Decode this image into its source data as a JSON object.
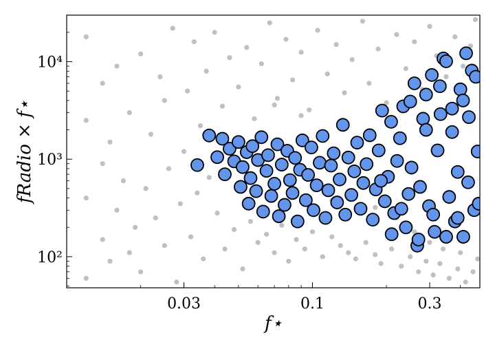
{
  "chart_data": {
    "type": "scatter",
    "title": "",
    "xlabel": "f⋆",
    "ylabel": "fRadio × f⋆",
    "x_scale": "log",
    "y_scale": "log",
    "xlim": [
      0.01,
      0.48
    ],
    "ylim": [
      48,
      30000
    ],
    "x_ticks": [
      {
        "value": 0.03,
        "label": "0.03"
      },
      {
        "value": 0.1,
        "label": "0.1"
      },
      {
        "value": 0.3,
        "label": "0.3"
      }
    ],
    "y_ticks": [
      {
        "value": 100,
        "label": "10²"
      },
      {
        "value": 1000,
        "label": "10³"
      },
      {
        "value": 10000,
        "label": "10⁴"
      }
    ],
    "grid": false,
    "legend": "none",
    "colors": {
      "background_points": "#8c8c8c",
      "highlighted_points": "#6495ed",
      "highlighted_edge": "#000000"
    },
    "series": [
      {
        "role": "background",
        "points": [
          [
            0.012,
            60
          ],
          [
            0.012,
            400
          ],
          [
            0.012,
            2500
          ],
          [
            0.012,
            18000
          ],
          [
            0.014,
            150
          ],
          [
            0.014,
            900
          ],
          [
            0.014,
            6000
          ],
          [
            0.015,
            90
          ],
          [
            0.015,
            1500
          ],
          [
            0.016,
            300
          ],
          [
            0.016,
            9000
          ],
          [
            0.017,
            600
          ],
          [
            0.018,
            110
          ],
          [
            0.018,
            3000
          ],
          [
            0.019,
            200
          ],
          [
            0.02,
            12000
          ],
          [
            0.02,
            70
          ],
          [
            0.021,
            500
          ],
          [
            0.022,
            1800
          ],
          [
            0.023,
            250
          ],
          [
            0.024,
            7000
          ],
          [
            0.025,
            130
          ],
          [
            0.025,
            4000
          ],
          [
            0.026,
            800
          ],
          [
            0.027,
            22000
          ],
          [
            0.028,
            55
          ],
          [
            0.029,
            350
          ],
          [
            0.03,
            1200
          ],
          [
            0.031,
            5000
          ],
          [
            0.032,
            160
          ],
          [
            0.033,
            16000
          ],
          [
            0.034,
            450
          ],
          [
            0.035,
            2200
          ],
          [
            0.036,
            95
          ],
          [
            0.037,
            8000
          ],
          [
            0.038,
            650
          ],
          [
            0.04,
            20000
          ],
          [
            0.041,
            280
          ],
          [
            0.043,
            3500
          ],
          [
            0.044,
            120
          ],
          [
            0.046,
            11000
          ],
          [
            0.048,
            190
          ],
          [
            0.05,
            5500
          ],
          [
            0.052,
            75
          ],
          [
            0.054,
            14000
          ],
          [
            0.056,
            230
          ],
          [
            0.058,
            2600
          ],
          [
            0.06,
            140
          ],
          [
            0.062,
            9500
          ],
          [
            0.065,
            170
          ],
          [
            0.067,
            25000
          ],
          [
            0.07,
            110
          ],
          [
            0.072,
            4200
          ],
          [
            0.075,
            210
          ],
          [
            0.078,
            17000
          ],
          [
            0.08,
            90
          ],
          [
            0.083,
            6500
          ],
          [
            0.086,
            150
          ],
          [
            0.09,
            12500
          ],
          [
            0.093,
            120
          ],
          [
            0.097,
            3200
          ],
          [
            0.1,
            180
          ],
          [
            0.105,
            21000
          ],
          [
            0.11,
            100
          ],
          [
            0.115,
            7500
          ],
          [
            0.12,
            160
          ],
          [
            0.125,
            15000
          ],
          [
            0.13,
            130
          ],
          [
            0.135,
            4800
          ],
          [
            0.14,
            110
          ],
          [
            0.145,
            10500
          ],
          [
            0.15,
            95
          ],
          [
            0.16,
            26000
          ],
          [
            0.165,
            140
          ],
          [
            0.17,
            6000
          ],
          [
            0.18,
            105
          ],
          [
            0.185,
            13500
          ],
          [
            0.19,
            85
          ],
          [
            0.2,
            3800
          ],
          [
            0.21,
            120
          ],
          [
            0.22,
            19000
          ],
          [
            0.23,
            80
          ],
          [
            0.24,
            8500
          ],
          [
            0.25,
            100
          ],
          [
            0.26,
            16000
          ],
          [
            0.27,
            70
          ],
          [
            0.28,
            5200
          ],
          [
            0.29,
            90
          ],
          [
            0.3,
            23000
          ],
          [
            0.31,
            65
          ],
          [
            0.32,
            11500
          ],
          [
            0.33,
            85
          ],
          [
            0.35,
            7000
          ],
          [
            0.36,
            60
          ],
          [
            0.38,
            18000
          ],
          [
            0.39,
            75
          ],
          [
            0.41,
            9000
          ],
          [
            0.42,
            55
          ],
          [
            0.44,
            14500
          ],
          [
            0.45,
            70
          ],
          [
            0.46,
            27000
          ],
          [
            0.47,
            95
          ],
          [
            0.22,
            250
          ],
          [
            0.26,
            180
          ],
          [
            0.3,
            140
          ],
          [
            0.34,
            120
          ],
          [
            0.4,
            110
          ],
          [
            0.18,
            320
          ],
          [
            0.14,
            420
          ],
          [
            0.12,
            380
          ],
          [
            0.09,
            2800
          ],
          [
            0.07,
            3600
          ]
        ]
      },
      {
        "role": "highlighted",
        "points": [
          [
            0.034,
            870
          ],
          [
            0.038,
            1750
          ],
          [
            0.041,
            1050
          ],
          [
            0.043,
            1620
          ],
          [
            0.044,
            700
          ],
          [
            0.046,
            1280
          ],
          [
            0.048,
            950
          ],
          [
            0.05,
            1500
          ],
          [
            0.051,
            520
          ],
          [
            0.052,
            830
          ],
          [
            0.054,
            1180
          ],
          [
            0.055,
            350
          ],
          [
            0.056,
            640
          ],
          [
            0.057,
            1360
          ],
          [
            0.059,
            470
          ],
          [
            0.06,
            980
          ],
          [
            0.062,
            1680
          ],
          [
            0.063,
            290
          ],
          [
            0.065,
            760
          ],
          [
            0.066,
            1100
          ],
          [
            0.068,
            420
          ],
          [
            0.07,
            560
          ],
          [
            0.072,
            1420
          ],
          [
            0.073,
            260
          ],
          [
            0.075,
            880
          ],
          [
            0.077,
            340
          ],
          [
            0.079,
            1220
          ],
          [
            0.081,
            610
          ],
          [
            0.083,
            450
          ],
          [
            0.085,
            1030
          ],
          [
            0.087,
            230
          ],
          [
            0.089,
            780
          ],
          [
            0.091,
            1560
          ],
          [
            0.094,
            380
          ],
          [
            0.096,
            690
          ],
          [
            0.099,
            1320
          ],
          [
            0.101,
            300
          ],
          [
            0.104,
            540
          ],
          [
            0.107,
            920
          ],
          [
            0.11,
            1730
          ],
          [
            0.113,
            250
          ],
          [
            0.116,
            480
          ],
          [
            0.119,
            860
          ],
          [
            0.122,
            1150
          ],
          [
            0.126,
            360
          ],
          [
            0.129,
            620
          ],
          [
            0.133,
            2250
          ],
          [
            0.136,
            270
          ],
          [
            0.14,
            1040
          ],
          [
            0.144,
            430
          ],
          [
            0.148,
            750
          ],
          [
            0.152,
            1480
          ],
          [
            0.157,
            310
          ],
          [
            0.161,
            570
          ],
          [
            0.166,
            890
          ],
          [
            0.171,
            1760
          ],
          [
            0.176,
            240
          ],
          [
            0.181,
            490
          ],
          [
            0.186,
            1230
          ],
          [
            0.192,
            3150
          ],
          [
            0.197,
            370
          ],
          [
            0.203,
            660
          ],
          [
            0.209,
            2420
          ],
          [
            0.215,
            280
          ],
          [
            0.221,
            960
          ],
          [
            0.227,
            1640
          ],
          [
            0.234,
            3480
          ],
          [
            0.24,
            200
          ],
          [
            0.246,
            440
          ],
          [
            0.253,
            820
          ],
          [
            0.26,
            6000
          ],
          [
            0.267,
            130
          ],
          [
            0.274,
            520
          ],
          [
            0.282,
            2600
          ],
          [
            0.29,
            4600
          ],
          [
            0.298,
            330
          ],
          [
            0.306,
            7300
          ],
          [
            0.314,
            180
          ],
          [
            0.323,
            1230
          ],
          [
            0.332,
            2900
          ],
          [
            0.341,
            10800
          ],
          [
            0.35,
            10100
          ],
          [
            0.36,
            410
          ],
          [
            0.37,
            3300
          ],
          [
            0.38,
            230
          ],
          [
            0.39,
            740
          ],
          [
            0.4,
            5200
          ],
          [
            0.411,
            160
          ],
          [
            0.422,
            12200
          ],
          [
            0.433,
            2700
          ],
          [
            0.445,
            8100
          ],
          [
            0.455,
            300
          ],
          [
            0.462,
            7000
          ],
          [
            0.47,
            1200
          ],
          [
            0.475,
            350
          ],
          [
            0.43,
            580
          ],
          [
            0.41,
            4000
          ],
          [
            0.39,
            250
          ],
          [
            0.37,
            1900
          ],
          [
            0.35,
            160
          ],
          [
            0.33,
            5600
          ],
          [
            0.31,
            270
          ],
          [
            0.29,
            2000
          ],
          [
            0.27,
            150
          ],
          [
            0.25,
            3900
          ],
          [
            0.23,
            310
          ],
          [
            0.21,
            170
          ],
          [
            0.19,
            600
          ]
        ]
      }
    ]
  }
}
